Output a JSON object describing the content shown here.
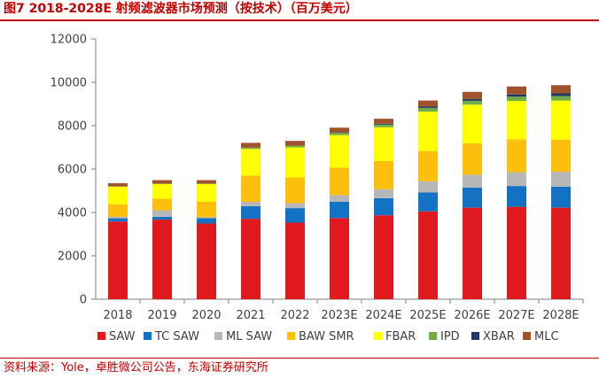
{
  "header": {
    "title": "图7  2018-2028E 射频滤波器市场预测（按技术）（百万美元）"
  },
  "footer": {
    "source": "资料来源：Yole，卓胜微公司公告，东海证券研究所"
  },
  "chart_data": {
    "type": "bar",
    "stacked": true,
    "title": "",
    "xlabel": "",
    "ylabel": "",
    "ylim": [
      0,
      12000
    ],
    "yticks": [
      0,
      2000,
      4000,
      6000,
      8000,
      10000,
      12000
    ],
    "grid": false,
    "legend_position": "bottom",
    "categories": [
      "2018",
      "2019",
      "2020",
      "2021",
      "2022",
      "2023E",
      "2024E",
      "2025E",
      "2026E",
      "2027E",
      "2028E"
    ],
    "series": [
      {
        "name": "SAW",
        "color": "#e0191f",
        "values": [
          3580,
          3670,
          3490,
          3710,
          3530,
          3740,
          3870,
          4050,
          4220,
          4260,
          4220
        ]
      },
      {
        "name": "TC SAW",
        "color": "#1372c4",
        "values": [
          150,
          130,
          250,
          580,
          670,
          760,
          790,
          870,
          930,
          960,
          970
        ]
      },
      {
        "name": "ML SAW",
        "color": "#b7b7b7",
        "values": [
          70,
          300,
          40,
          200,
          230,
          300,
          410,
          520,
          590,
          640,
          690
        ]
      },
      {
        "name": "BAW SMR",
        "color": "#fcbf0c",
        "values": [
          580,
          530,
          720,
          1210,
          1180,
          1260,
          1300,
          1390,
          1450,
          1510,
          1480
        ]
      },
      {
        "name": "FBAR",
        "color": "#ffff00",
        "values": [
          810,
          680,
          810,
          1230,
          1390,
          1510,
          1560,
          1820,
          1780,
          1770,
          1800
        ]
      },
      {
        "name": "IPD",
        "color": "#70ad47",
        "values": [
          10,
          20,
          20,
          60,
          80,
          100,
          120,
          170,
          180,
          200,
          210
        ]
      },
      {
        "name": "XBAR",
        "color": "#1f3864",
        "values": [
          0,
          0,
          0,
          0,
          0,
          20,
          40,
          60,
          80,
          100,
          120
        ]
      },
      {
        "name": "MLC",
        "color": "#a0522d",
        "values": [
          150,
          160,
          160,
          220,
          220,
          220,
          230,
          280,
          330,
          370,
          380
        ]
      }
    ]
  }
}
